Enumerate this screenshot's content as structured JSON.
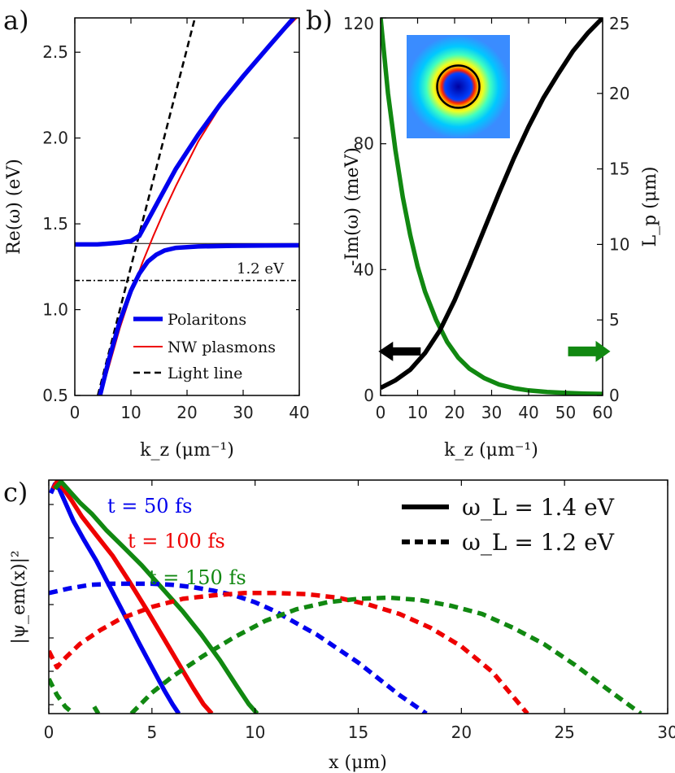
{
  "chart_data": [
    {
      "panel": "a)",
      "type": "line",
      "xlabel": "k_z (μm⁻¹)",
      "ylabel": "Re(ω) (eV)",
      "xlim": [
        0,
        40
      ],
      "ylim": [
        0.5,
        2.7
      ],
      "xticks": [
        0,
        10,
        20,
        30,
        40
      ],
      "yticks": [
        0.5,
        1.0,
        1.5,
        2.0,
        2.5
      ],
      "ytick_labels": [
        "0.5",
        "1.0",
        "1.5",
        "2.0",
        "2.5"
      ],
      "annotation": "1.2 eV",
      "reference_line_y": 1.17,
      "legend_position": "bottom-right",
      "series": [
        {
          "name": "Polaritons",
          "color": "#0000ee",
          "style": "solid-thick",
          "branches": [
            {
              "x": [
                0,
                4,
                8,
                10,
                11.5,
                13,
                15,
                18,
                22,
                26,
                30,
                35,
                39
              ],
              "y": [
                1.38,
                1.38,
                1.39,
                1.4,
                1.43,
                1.52,
                1.64,
                1.82,
                2.02,
                2.2,
                2.36,
                2.55,
                2.7
              ]
            },
            {
              "x": [
                4.5,
                6,
                8,
                10,
                11.5,
                13,
                14.5,
                16,
                18,
                22,
                28,
                34,
                40
              ],
              "y": [
                0.5,
                0.7,
                0.93,
                1.11,
                1.21,
                1.28,
                1.32,
                1.345,
                1.36,
                1.368,
                1.372,
                1.374,
                1.375
              ]
            }
          ]
        },
        {
          "name": "NW plasmons",
          "color": "#ee0000",
          "style": "solid-thin",
          "branches": [
            {
              "x": [
                4.6,
                6,
                8,
                10,
                12,
                14,
                16,
                18,
                22,
                26,
                30,
                35,
                39.5
              ],
              "y": [
                0.5,
                0.66,
                0.89,
                1.09,
                1.27,
                1.43,
                1.58,
                1.72,
                1.98,
                2.19,
                2.37,
                2.55,
                2.7
              ]
            }
          ]
        },
        {
          "name": "Light line",
          "color": "#000000",
          "style": "dashed",
          "branches": [
            {
              "x": [
                4.1,
                21.4
              ],
              "y": [
                0.5,
                2.7
              ]
            }
          ]
        },
        {
          "name": "",
          "color": "#000000",
          "style": "thin",
          "branches": [
            {
              "x": [
                0,
                40
              ],
              "y": [
                1.385,
                1.385
              ]
            }
          ]
        }
      ]
    },
    {
      "panel": "b)",
      "type": "line",
      "xlabel": "k_z (μm⁻¹)",
      "ylabel_left": "-Im(ω) (meV)",
      "ylabel_right": "L_p (μm)",
      "xlim": [
        0,
        60
      ],
      "ylim_left": [
        0,
        120
      ],
      "ylim_right": [
        0,
        25
      ],
      "xticks": [
        0,
        10,
        20,
        30,
        40,
        50,
        60
      ],
      "yticks_left": [
        0,
        40,
        80,
        120
      ],
      "yticks_right": [
        0,
        5,
        10,
        15,
        20,
        25
      ],
      "series": [
        {
          "name": "",
          "axis": "left",
          "color": "#118811",
          "x": [
            0,
            2,
            4,
            6,
            8,
            10,
            12,
            15,
            18,
            21,
            24,
            28,
            32,
            36,
            40,
            45,
            50,
            55,
            60
          ],
          "y": [
            120,
            96,
            78,
            63,
            51,
            41,
            33,
            24,
            17,
            12,
            8.5,
            5.5,
            3.5,
            2.3,
            1.6,
            1.1,
            0.8,
            0.6,
            0.5
          ]
        },
        {
          "name": "",
          "axis": "right",
          "color": "#000000",
          "x": [
            0,
            4,
            8,
            12,
            16,
            20,
            24,
            28,
            32,
            36,
            40,
            44,
            48,
            52,
            56,
            60
          ],
          "y": [
            0.5,
            1.0,
            1.7,
            2.8,
            4.3,
            6.3,
            8.6,
            11.0,
            13.4,
            15.7,
            17.8,
            19.7,
            21.3,
            22.8,
            24.0,
            25.0
          ]
        }
      ],
      "arrows": [
        {
          "direction": "left",
          "color": "#000000",
          "x": 6,
          "y_left": 14
        },
        {
          "direction": "right",
          "color": "#118811",
          "x": 55.5,
          "y_left": 14
        }
      ]
    },
    {
      "panel": "c)",
      "type": "line",
      "xlabel": "x (μm)",
      "ylabel": "|ψ_em(x)|²",
      "xlim": [
        0,
        30
      ],
      "xticks": [
        0,
        5,
        10,
        15,
        20,
        25,
        30
      ],
      "legend": [
        {
          "label": "ω_L = 1.4 eV",
          "style": "solid"
        },
        {
          "label": "ω_L = 1.2 eV",
          "style": "dotted"
        }
      ],
      "time_labels": [
        {
          "text": "t = 50 fs",
          "color": "#0000ee"
        },
        {
          "text": "t = 100 fs",
          "color": "#ee0000"
        },
        {
          "text": "t = 150 fs",
          "color": "#118811"
        }
      ],
      "ylim": [
        0,
        1
      ],
      "series": [
        {
          "name": "",
          "color": "#0000ee",
          "style": "solid",
          "x": [
            0.1,
            0.3,
            0.5,
            0.8,
            1.2,
            1.7,
            2.3,
            3.0,
            3.7,
            4.4,
            5.0,
            5.6,
            6.0,
            6.3
          ],
          "y": [
            0.95,
            0.99,
            0.97,
            0.91,
            0.83,
            0.75,
            0.66,
            0.54,
            0.42,
            0.3,
            0.2,
            0.1,
            0.04,
            0.0
          ]
        },
        {
          "name": "",
          "color": "#ee0000",
          "style": "solid",
          "x": [
            0.2,
            0.4,
            0.7,
            1.1,
            1.6,
            2.3,
            3.1,
            3.9,
            4.8,
            5.6,
            6.4,
            7.0,
            7.5,
            7.9
          ],
          "y": [
            0.97,
            1.0,
            0.97,
            0.92,
            0.85,
            0.77,
            0.68,
            0.57,
            0.44,
            0.32,
            0.2,
            0.11,
            0.04,
            0.0
          ]
        },
        {
          "name": "",
          "color": "#118811",
          "style": "solid",
          "x": [
            0.3,
            0.6,
            1.0,
            1.5,
            2.1,
            2.8,
            3.6,
            4.5,
            5.5,
            6.5,
            7.4,
            8.3,
            9.1,
            9.7,
            10.1
          ],
          "y": [
            0.97,
            1.0,
            0.96,
            0.91,
            0.86,
            0.79,
            0.72,
            0.64,
            0.54,
            0.44,
            0.34,
            0.23,
            0.12,
            0.04,
            0.0
          ]
        },
        {
          "name": "",
          "color": "#0000ee",
          "style": "dotted",
          "x": [
            0,
            1,
            2,
            3,
            4,
            5,
            6,
            7,
            8,
            9,
            10,
            11,
            12,
            13,
            14,
            15,
            16,
            17,
            18.3
          ],
          "y": [
            0.52,
            0.54,
            0.555,
            0.56,
            0.56,
            0.56,
            0.555,
            0.545,
            0.53,
            0.51,
            0.48,
            0.44,
            0.39,
            0.34,
            0.28,
            0.22,
            0.15,
            0.08,
            0.0
          ]
        },
        {
          "name": "",
          "color": "#ee0000",
          "style": "dotted",
          "x": [
            0,
            0.4,
            0.8,
            1.5,
            2.5,
            3.5,
            5,
            6.5,
            8,
            9.5,
            11,
            12.5,
            14,
            15.5,
            17,
            18.5,
            20,
            21.5,
            23.2
          ],
          "y": [
            0.27,
            0.2,
            0.24,
            0.3,
            0.36,
            0.41,
            0.46,
            0.495,
            0.51,
            0.52,
            0.52,
            0.515,
            0.5,
            0.47,
            0.43,
            0.37,
            0.29,
            0.18,
            0.0
          ]
        },
        {
          "name": "",
          "color": "#118811",
          "style": "dotted",
          "x": [
            4,
            5,
            6,
            7.5,
            9,
            10.5,
            12,
            13.5,
            15,
            16.5,
            18,
            19.5,
            21,
            22.5,
            24,
            25.5,
            27,
            28.7
          ],
          "y": [
            0.0,
            0.09,
            0.16,
            0.25,
            0.33,
            0.4,
            0.45,
            0.48,
            0.495,
            0.5,
            0.49,
            0.465,
            0.43,
            0.37,
            0.3,
            0.21,
            0.11,
            0.0
          ]
        },
        {
          "name": "",
          "color": "#118811",
          "style": "dotted",
          "x": [
            0,
            0.4,
            0.8,
            1.2
          ],
          "y": [
            0.15,
            0.08,
            0.03,
            0.0
          ]
        },
        {
          "name": "",
          "color": "#118811",
          "style": "dotted",
          "x": [
            2.2,
            2.4
          ],
          "y": [
            0.03,
            0.0
          ]
        }
      ]
    }
  ]
}
